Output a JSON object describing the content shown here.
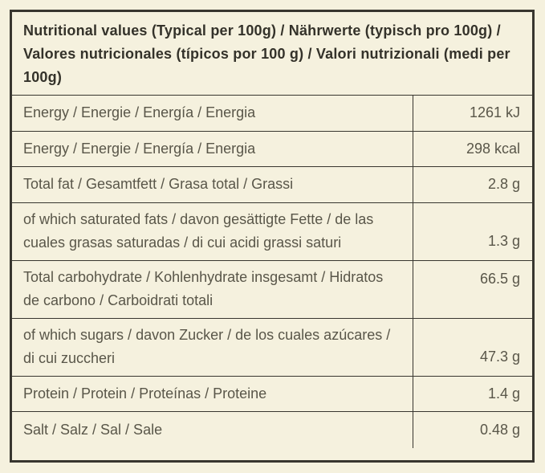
{
  "table": {
    "title": "Nutritional values (Typical per 100g) / Nährwerte (typisch pro 100g) / Valores nutricionales (típicos por 100 g) / Valori nutrizionali (medi per 100g)",
    "rows": [
      {
        "label": "Energy / Energie / Energía / Energia",
        "value": "1261 kJ"
      },
      {
        "label": "Energy / Energie / Energía / Energia",
        "value": "298 kcal"
      },
      {
        "label": "Total fat / Gesamtfett / Grasa total / Grassi",
        "value": "2.8 g"
      },
      {
        "label": "of which saturated fats / davon gesättigte Fette / de las cuales grasas saturadas / di cui acidi grassi saturi",
        "value": "1.3 g"
      },
      {
        "label": "Total carbohydrate / Kohlenhydrate insgesamt / Hidratos de carbono / Carboidrati totali",
        "value": "66.5 g"
      },
      {
        "label": "of which sugars / davon Zucker / de los cuales azúcares / di cui zuccheri",
        "value": "47.3 g"
      },
      {
        "label": "Protein / Protein / Proteínas / Proteine",
        "value": "1.4 g"
      },
      {
        "label": "Salt / Salz / Sal / Sale",
        "value": "0.48 g"
      }
    ],
    "colors": {
      "background": "#f5f1de",
      "border": "#38362f",
      "text": "#595649",
      "header_text": "#34322a"
    }
  }
}
